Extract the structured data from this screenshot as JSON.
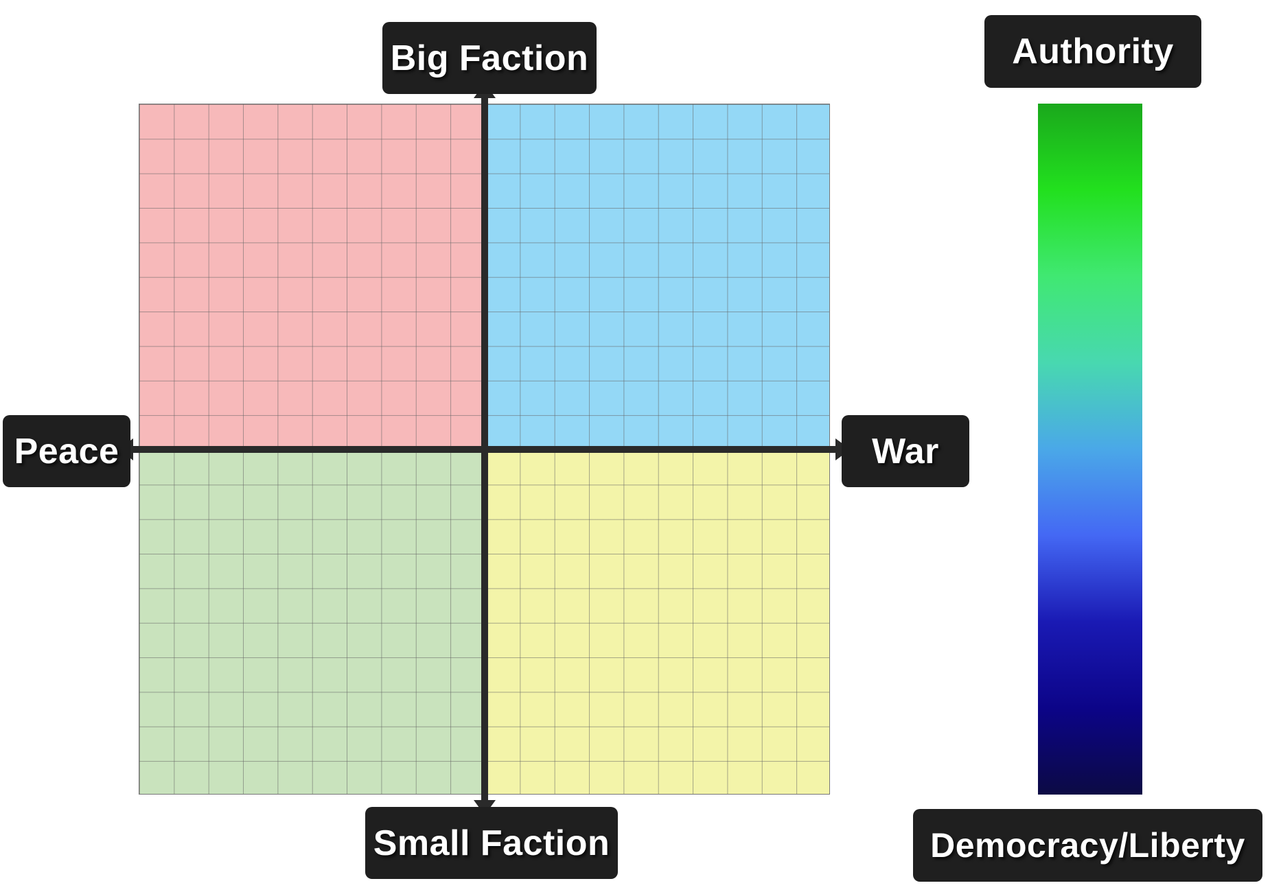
{
  "labels": {
    "top": "Big Faction",
    "bottom": "Small Faction",
    "left": "Peace",
    "right": "War",
    "gradient_top": "Authority",
    "gradient_bottom": "Democracy/Liberty"
  },
  "quadrant_colors": {
    "top_left": "#f7b9ba",
    "top_right": "#94d8f6",
    "bottom_left": "#c9e3bd",
    "bottom_right": "#f3f4a9"
  },
  "gradient_stops": [
    "#1aa81c",
    "#22e01e",
    "#40e872",
    "#48d8b0",
    "#4aa8e8",
    "#4468f4",
    "#1a1ab4",
    "#0c0488",
    "#0c0a44"
  ],
  "axis_color": "#2a2a2a",
  "label_background": "#1f1f1f"
}
